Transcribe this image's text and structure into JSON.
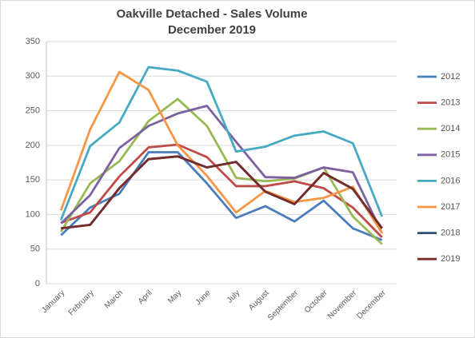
{
  "chart_data": {
    "type": "line",
    "title": "Oakville Detached - Sales Volume",
    "subtitle": "December 2019",
    "categories": [
      "January",
      "February",
      "March",
      "April",
      "May",
      "June",
      "July",
      "August",
      "September",
      "October",
      "November",
      "December"
    ],
    "series": [
      {
        "name": "2012",
        "color": "#4a7ebb",
        "values": [
          70,
          110,
          130,
          190,
          190,
          145,
          95,
          112,
          90,
          120,
          80,
          63
        ]
      },
      {
        "name": "2013",
        "color": "#be4b48",
        "values": [
          88,
          103,
          155,
          197,
          201,
          183,
          141,
          141,
          148,
          138,
          110,
          67
        ]
      },
      {
        "name": "2014",
        "color": "#98b954",
        "values": [
          75,
          145,
          177,
          235,
          267,
          228,
          153,
          148,
          152,
          168,
          97,
          57
        ]
      },
      {
        "name": "2015",
        "color": "#7d60a0",
        "values": [
          87,
          128,
          196,
          228,
          246,
          257,
          205,
          154,
          153,
          168,
          161,
          73
        ]
      },
      {
        "name": "2016",
        "color": "#46aac5",
        "values": [
          92,
          199,
          233,
          313,
          308,
          292,
          191,
          198,
          214,
          220,
          203,
          97
        ]
      },
      {
        "name": "2017",
        "color": "#f79646",
        "values": [
          106,
          223,
          306,
          280,
          200,
          156,
          103,
          134,
          118,
          124,
          140,
          73
        ]
      },
      {
        "name": "2018",
        "color": "#2c4d75",
        "values": [
          80,
          85,
          138,
          180,
          184,
          168,
          176,
          133,
          115,
          160,
          137,
          80
        ]
      },
      {
        "name": "2019",
        "color": "#772c2a",
        "values": [
          80,
          85,
          138,
          180,
          184,
          168,
          176,
          133,
          115,
          160,
          137,
          80
        ]
      }
    ],
    "ylim": [
      0,
      350
    ],
    "yticks": [
      0,
      50,
      100,
      150,
      200,
      250,
      300,
      350
    ],
    "grid": true,
    "legend": "right"
  }
}
